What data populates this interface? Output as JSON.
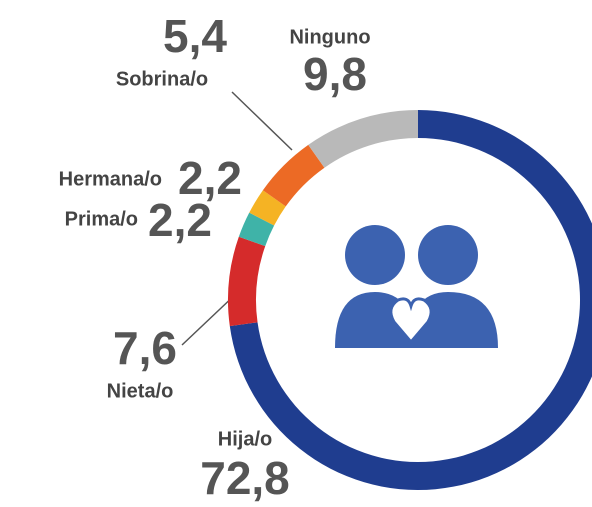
{
  "chart_data": {
    "type": "donut",
    "categories": [
      "Hija/o",
      "Nieta/o",
      "Prima/o",
      "Hermana/o",
      "Sobrina/o",
      "Ninguno"
    ],
    "values": [
      72.8,
      7.6,
      2.2,
      2.2,
      5.4,
      9.8
    ],
    "value_labels": [
      "72,8",
      "7,6",
      "2,2",
      "2,2",
      "5,4",
      "9,8"
    ],
    "colors": [
      "#1f3d8f",
      "#d52b2b",
      "#3fb3a8",
      "#f5b324",
      "#ec6a25",
      "#b9b9b9"
    ]
  }
}
